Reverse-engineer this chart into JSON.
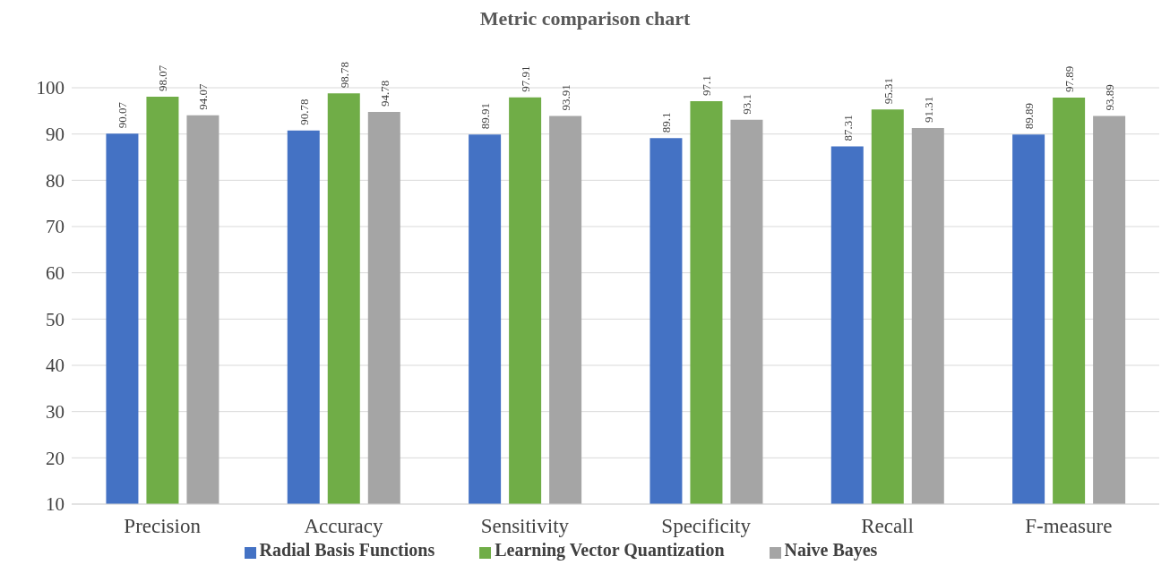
{
  "chart_data": {
    "type": "bar",
    "title": "Metric comparison chart",
    "categories": [
      "Precision",
      "Accuracy",
      "Sensitivity",
      "Specificity",
      "Recall",
      "F-measure"
    ],
    "series": [
      {
        "name": "Radial Basis Functions",
        "color": "#4472c4",
        "values": [
          90.07,
          90.78,
          89.91,
          89.1,
          87.31,
          89.89
        ]
      },
      {
        "name": "Learning Vector Quantization",
        "color": "#70ad47",
        "values": [
          98.07,
          98.78,
          97.91,
          97.1,
          95.31,
          97.89
        ]
      },
      {
        "name": "Naive Bayes",
        "color": "#a5a5a5",
        "values": [
          94.07,
          94.78,
          93.91,
          93.1,
          91.31,
          93.89
        ]
      }
    ],
    "ylim": [
      10,
      100
    ],
    "yticks": [
      10,
      20,
      30,
      40,
      50,
      60,
      70,
      80,
      90,
      100
    ],
    "grid": "y",
    "legend": "bottom",
    "data_labels": true
  }
}
